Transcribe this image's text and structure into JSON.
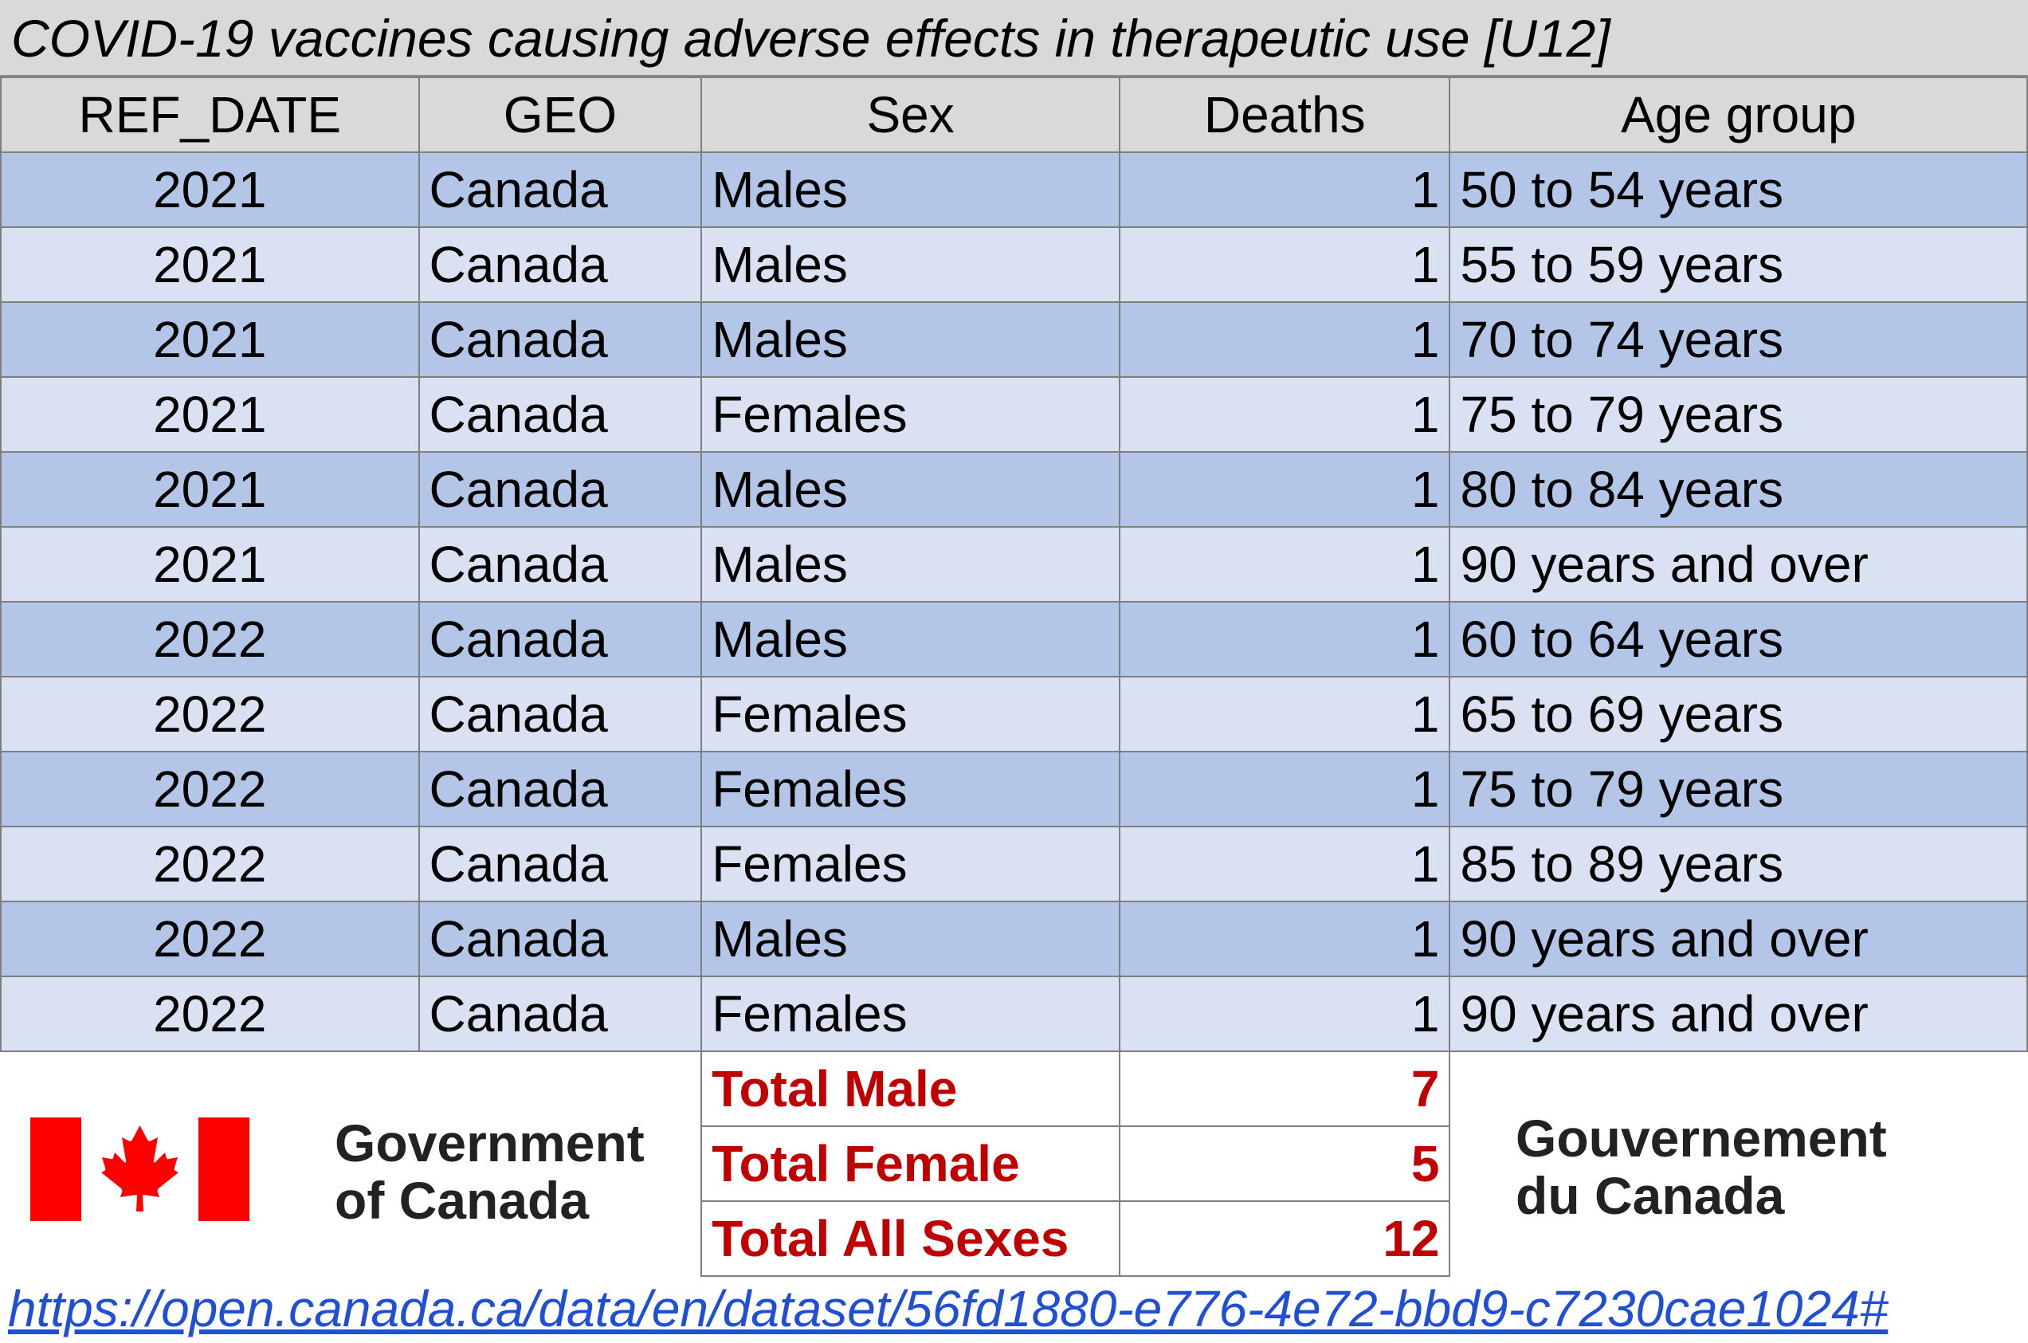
{
  "title": "COVID-19 vaccines causing adverse effects in therapeutic use [U12]",
  "columns": [
    "REF_DATE",
    "GEO",
    "Sex",
    "Deaths",
    "Age group"
  ],
  "rows": [
    [
      "2021",
      "Canada",
      "Males",
      "1",
      "50 to 54 years"
    ],
    [
      "2021",
      "Canada",
      "Males",
      "1",
      "55 to 59 years"
    ],
    [
      "2021",
      "Canada",
      "Males",
      "1",
      "70 to 74 years"
    ],
    [
      "2021",
      "Canada",
      "Females",
      "1",
      "75 to 79 years"
    ],
    [
      "2021",
      "Canada",
      "Males",
      "1",
      "80 to 84 years"
    ],
    [
      "2021",
      "Canada",
      "Males",
      "1",
      "90 years and over"
    ],
    [
      "2022",
      "Canada",
      "Males",
      "1",
      "60 to 64 years"
    ],
    [
      "2022",
      "Canada",
      "Females",
      "1",
      "65 to 69 years"
    ],
    [
      "2022",
      "Canada",
      "Females",
      "1",
      "75 to 79 years"
    ],
    [
      "2022",
      "Canada",
      "Females",
      "1",
      "85 to 89 years"
    ],
    [
      "2022",
      "Canada",
      "Males",
      "1",
      "90 years and over"
    ],
    [
      "2022",
      "Canada",
      "Females",
      "1",
      "90 years and over"
    ]
  ],
  "totals": [
    {
      "label": "Total Male",
      "value": "7"
    },
    {
      "label": "Total Female",
      "value": "5"
    },
    {
      "label": "Total All Sexes",
      "value": "12"
    }
  ],
  "logo_en": {
    "line1": "Government",
    "line2": "of Canada"
  },
  "logo_fr": {
    "line1": "Gouvernement",
    "line2": "du Canada"
  },
  "flag_icon": "canada-flag-icon",
  "colors": {
    "row_dark": "#b4c6e7",
    "row_light": "#dae1f3",
    "total_text": "#c00000",
    "flag_red": "#ff0000"
  },
  "source_link": "https://open.canada.ca/data/en/dataset/56fd1880-e776-4e72-bbd9-c7230cae1024#"
}
